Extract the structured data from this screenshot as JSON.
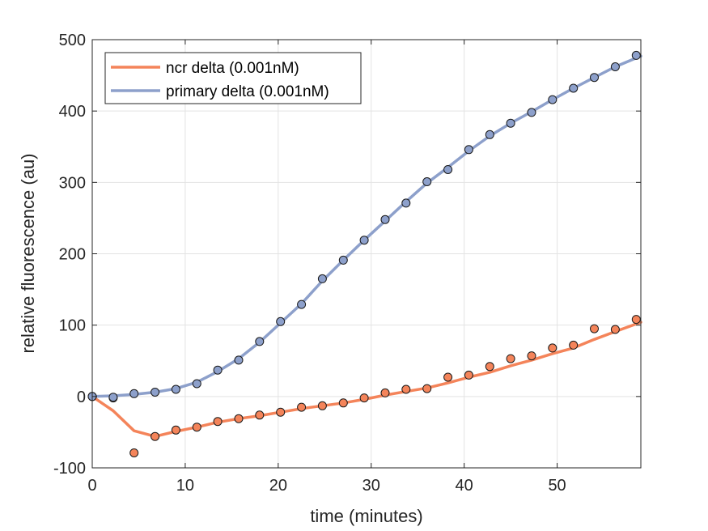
{
  "chart_data": {
    "type": "line",
    "xlabel": "time (minutes)",
    "ylabel": "relative fluorescence (au)",
    "xlim": [
      0,
      59
    ],
    "ylim": [
      -100,
      500
    ],
    "xticks": [
      0,
      10,
      20,
      30,
      40,
      50
    ],
    "yticks": [
      -100,
      0,
      100,
      200,
      300,
      400,
      500
    ],
    "grid": true,
    "legend_position": "top-left",
    "series": [
      {
        "name": "ncr delta (0.001nM)",
        "color": "#f4845a",
        "points_x": [
          0,
          2.25,
          4.5,
          6.75,
          9,
          11.25,
          13.5,
          15.75,
          18,
          20.25,
          22.5,
          24.75,
          27,
          29.25,
          31.5,
          33.75,
          36,
          38.25,
          40.5,
          42.75,
          45,
          47.25,
          49.5,
          51.75,
          54,
          56.25,
          58.5
        ],
        "points_y": [
          0,
          -2,
          -79,
          -56,
          -47,
          -43,
          -35,
          -31,
          -26,
          -22,
          -15,
          -13,
          -9,
          -2,
          5,
          10,
          11,
          27,
          30,
          42,
          53,
          57,
          68,
          72,
          95,
          94,
          108
        ],
        "line_x": [
          0,
          2.25,
          4.5,
          6.75,
          9,
          11.25,
          13.5,
          15.75,
          18,
          20.25,
          22.5,
          24.75,
          27,
          29.25,
          31.5,
          33.75,
          36,
          38.25,
          40.5,
          42.75,
          45,
          47.25,
          49.5,
          51.75,
          54,
          56.25,
          59
        ],
        "line_y": [
          0,
          -20,
          -48,
          -56,
          -49,
          -43,
          -36,
          -31,
          -27,
          -22,
          -17,
          -13,
          -9,
          -4,
          2,
          7,
          12,
          19,
          27,
          34,
          43,
          51,
          60,
          68,
          80,
          91,
          104
        ]
      },
      {
        "name": "primary delta (0.001nM)",
        "color": "#8da0cb",
        "points_x": [
          0,
          2.25,
          4.5,
          6.75,
          9,
          11.25,
          13.5,
          15.75,
          18,
          20.25,
          22.5,
          24.75,
          27,
          29.25,
          31.5,
          33.75,
          36,
          38.25,
          40.5,
          42.75,
          45,
          47.25,
          49.5,
          51.75,
          54,
          56.25,
          58.5
        ],
        "points_y": [
          0,
          -1,
          4,
          6,
          10,
          18,
          37,
          51,
          77,
          105,
          129,
          165,
          191,
          219,
          248,
          271,
          301,
          318,
          346,
          367,
          383,
          398,
          416,
          432,
          447,
          462,
          478
        ],
        "line_x": [
          0,
          2.25,
          4.5,
          6.75,
          9,
          11.25,
          13.5,
          15.75,
          18,
          20.25,
          22.5,
          24.75,
          27,
          29.25,
          31.5,
          33.75,
          36,
          38.25,
          40.5,
          42.75,
          45,
          47.25,
          49.5,
          51.75,
          54,
          56.25,
          59
        ],
        "line_y": [
          0,
          1,
          3,
          6,
          11,
          20,
          35,
          53,
          76,
          103,
          130,
          162,
          191,
          219,
          246,
          273,
          299,
          321,
          344,
          365,
          383,
          399,
          416,
          432,
          447,
          462,
          477
        ]
      }
    ]
  }
}
